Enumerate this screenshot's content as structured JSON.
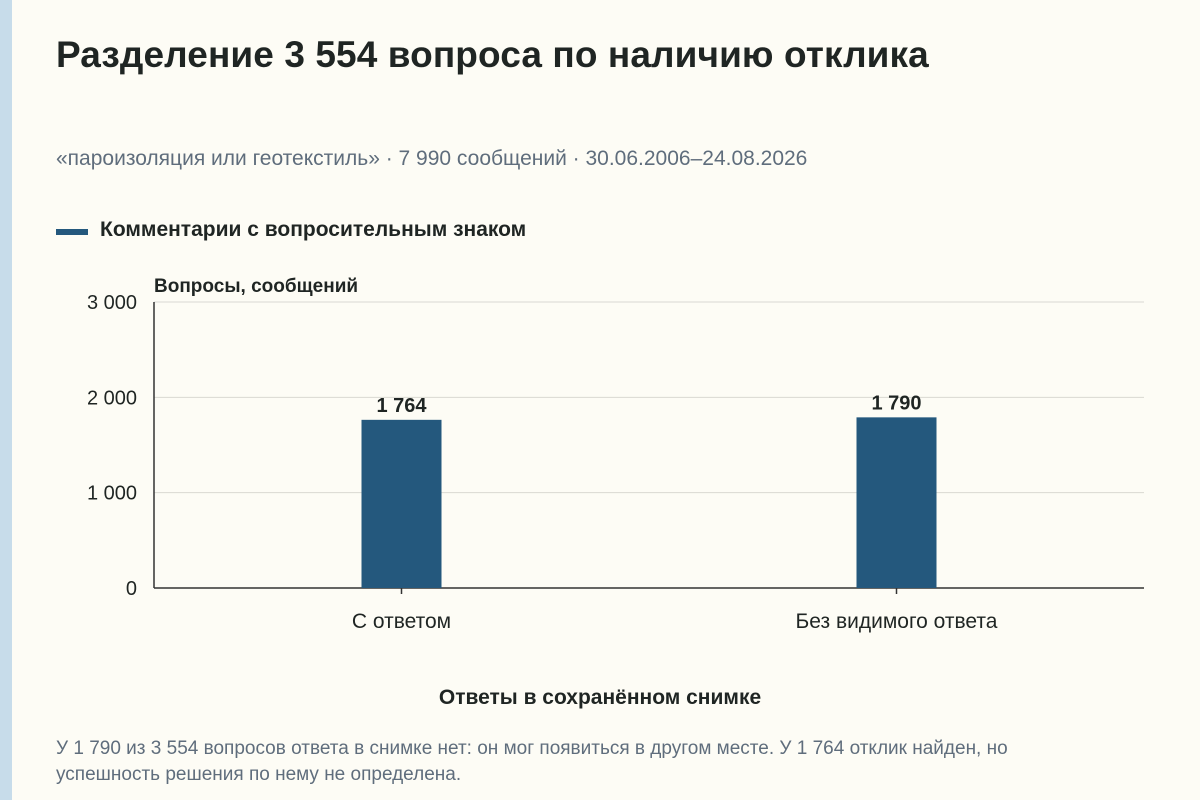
{
  "colors": {
    "background": "#fdfcf5",
    "bar": "#24587d",
    "grid": "#d9d9d2",
    "axis": "#333333",
    "muted_text": "#5f6d7c",
    "text": "#1f2523",
    "stripe": "#c7dcea"
  },
  "chart_data": {
    "type": "bar",
    "title": "Разделение 3 554 вопроса по наличию отклика",
    "subtitle": "«пароизоляция или геотекстиль» · 7 990 сообщений · 30.06.2006–24.08.2026",
    "ylabel": "Вопросы, сообщений",
    "xlabel": "Ответы в сохранённом снимке",
    "categories": [
      "С ответом",
      "Без видимого ответа"
    ],
    "series": [
      {
        "name": "Комментарии с вопросительным знаком",
        "values": [
          1764,
          1790
        ],
        "value_labels": [
          "1 764",
          "1 790"
        ]
      }
    ],
    "ylim": [
      0,
      3000
    ],
    "y_ticks": [
      0,
      1000,
      2000,
      3000
    ],
    "y_tick_labels": [
      "0",
      "1 000",
      "2 000",
      "3 000"
    ],
    "grid": true,
    "legend_position": "top-left"
  },
  "note": "У 1 790 из 3 554 вопросов ответа в снимке нет: он мог появиться в другом месте. У 1 764 отклик найден, но успешность решения по нему не определена."
}
